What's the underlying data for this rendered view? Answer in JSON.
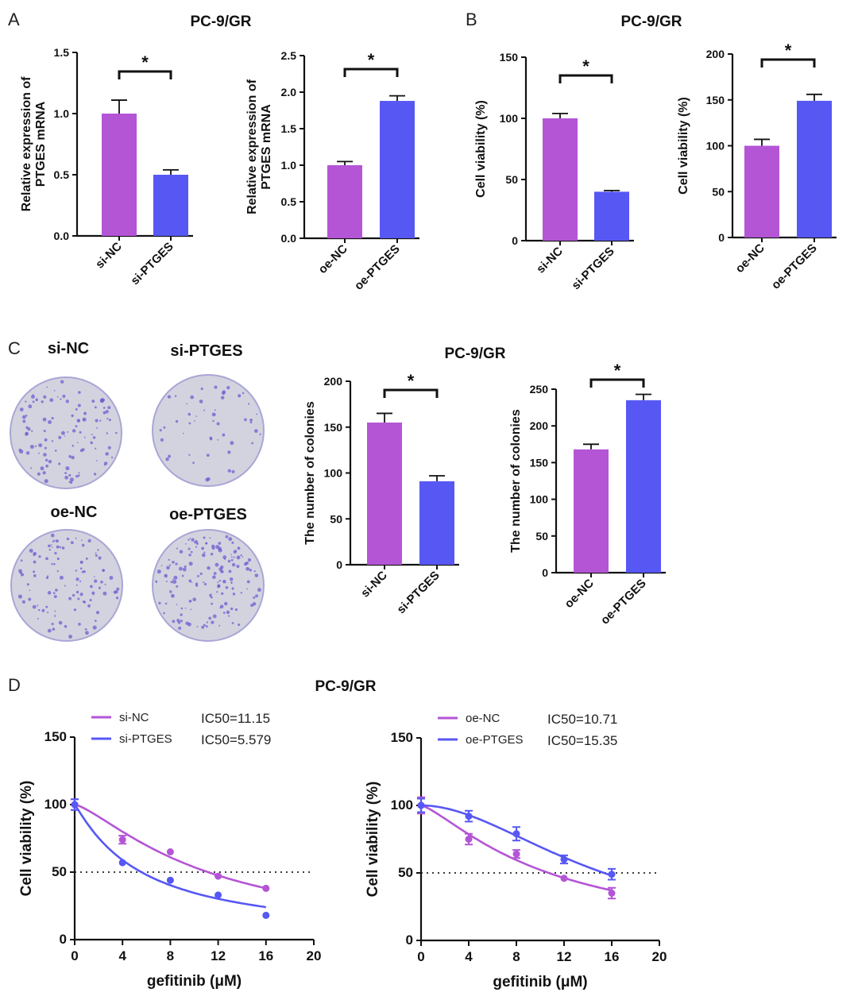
{
  "panels": {
    "A": "A",
    "B": "B",
    "C": "C",
    "D": "D"
  },
  "colors": {
    "nc": "#b455d6",
    "treat": "#5757f4"
  },
  "colony_labels": [
    "si-NC",
    "si-PTGES",
    "oe-NC",
    "oe-PTGES"
  ],
  "chart_data": [
    {
      "id": "A1",
      "type": "bar",
      "title": "PC-9/GR",
      "ylabel": [
        "Relative expression of",
        "PTGES mRNA"
      ],
      "categories": [
        "si-NC",
        "si-PTGES"
      ],
      "values": [
        1.0,
        0.5
      ],
      "errors": [
        0.11,
        0.04
      ],
      "ylim": [
        0,
        1.5
      ],
      "yticks": [
        "0.0",
        "0.5",
        "1.0",
        "1.5"
      ],
      "significance": "*"
    },
    {
      "id": "A2",
      "type": "bar",
      "title": "",
      "ylabel": [
        "Relative expression of",
        "PTGES mRNA"
      ],
      "categories": [
        "oe-NC",
        "oe-PTGES"
      ],
      "values": [
        1.0,
        1.88
      ],
      "errors": [
        0.05,
        0.07
      ],
      "ylim": [
        0,
        2.5
      ],
      "yticks": [
        "0.0",
        "0.5",
        "1.0",
        "1.5",
        "2.0",
        "2.5"
      ],
      "significance": "*"
    },
    {
      "id": "B1",
      "type": "bar",
      "title": "PC-9/GR",
      "ylabel": [
        "Cell viability (%)"
      ],
      "categories": [
        "si-NC",
        "si-PTGES"
      ],
      "values": [
        100,
        40
      ],
      "errors": [
        4,
        1
      ],
      "ylim": [
        0,
        150
      ],
      "yticks": [
        "0",
        "50",
        "100",
        "150"
      ],
      "significance": "*"
    },
    {
      "id": "B2",
      "type": "bar",
      "title": "",
      "ylabel": [
        "Cell viability (%)"
      ],
      "categories": [
        "oe-NC",
        "oe-PTGES"
      ],
      "values": [
        100,
        149
      ],
      "errors": [
        7,
        7
      ],
      "ylim": [
        0,
        200
      ],
      "yticks": [
        "0",
        "50",
        "100",
        "150",
        "200"
      ],
      "significance": "*"
    },
    {
      "id": "C1",
      "type": "bar",
      "title": "PC-9/GR",
      "ylabel": [
        "The number of colonies"
      ],
      "categories": [
        "si-NC",
        "si-PTGES"
      ],
      "values": [
        155,
        91
      ],
      "errors": [
        10,
        6
      ],
      "ylim": [
        0,
        200
      ],
      "yticks": [
        "0",
        "50",
        "100",
        "150",
        "200"
      ],
      "significance": "*"
    },
    {
      "id": "C2",
      "type": "bar",
      "title": "",
      "ylabel": [
        "The number of colonies"
      ],
      "categories": [
        "oe-NC",
        "oe-PTGES"
      ],
      "values": [
        168,
        235
      ],
      "errors": [
        7,
        8
      ],
      "ylim": [
        0,
        250
      ],
      "yticks": [
        "0",
        "50",
        "100",
        "150",
        "200",
        "250"
      ],
      "significance": "*"
    },
    {
      "id": "D1",
      "type": "line",
      "title": "PC-9/GR",
      "xlabel": "gefitinib (μM)",
      "ylabel": "Cell viability (%)",
      "xlim": [
        0,
        20
      ],
      "ylim": [
        0,
        150
      ],
      "xticks": [
        "0",
        "4",
        "8",
        "12",
        "16",
        "20"
      ],
      "yticks": [
        "0",
        "50",
        "100",
        "150"
      ],
      "reference_line": 50,
      "x": [
        0,
        4,
        8,
        12,
        16
      ],
      "series": [
        {
          "name": "si-NC",
          "ic50_label": "IC50=11.15",
          "ic50": 11.15,
          "values": [
            100,
            74,
            65,
            47,
            38
          ],
          "errors": [
            4,
            3,
            1,
            1,
            1
          ]
        },
        {
          "name": "si-PTGES",
          "ic50_label": "IC50=5.579",
          "ic50": 5.579,
          "values": [
            100,
            57,
            44,
            33,
            18
          ],
          "errors": [
            4,
            1,
            1,
            1,
            1
          ]
        }
      ]
    },
    {
      "id": "D2",
      "type": "line",
      "title": "",
      "xlabel": "gefitinib (μM)",
      "ylabel": "Cell viability (%)",
      "xlim": [
        0,
        20
      ],
      "ylim": [
        0,
        150
      ],
      "xticks": [
        "0",
        "4",
        "8",
        "12",
        "16",
        "20"
      ],
      "yticks": [
        "0",
        "50",
        "100",
        "150"
      ],
      "reference_line": 50,
      "x": [
        0,
        4,
        8,
        12,
        16
      ],
      "series": [
        {
          "name": "oe-NC",
          "ic50_label": "IC50=10.71",
          "ic50": 10.71,
          "values": [
            100,
            75,
            64,
            46,
            35
          ],
          "errors": [
            6,
            4,
            3,
            1,
            4
          ]
        },
        {
          "name": "oe-PTGES",
          "ic50_label": "IC50=15.35",
          "ic50": 15.35,
          "values": [
            100,
            92,
            79,
            60,
            49
          ],
          "errors": [
            5,
            4,
            5,
            3,
            4
          ]
        }
      ]
    }
  ]
}
